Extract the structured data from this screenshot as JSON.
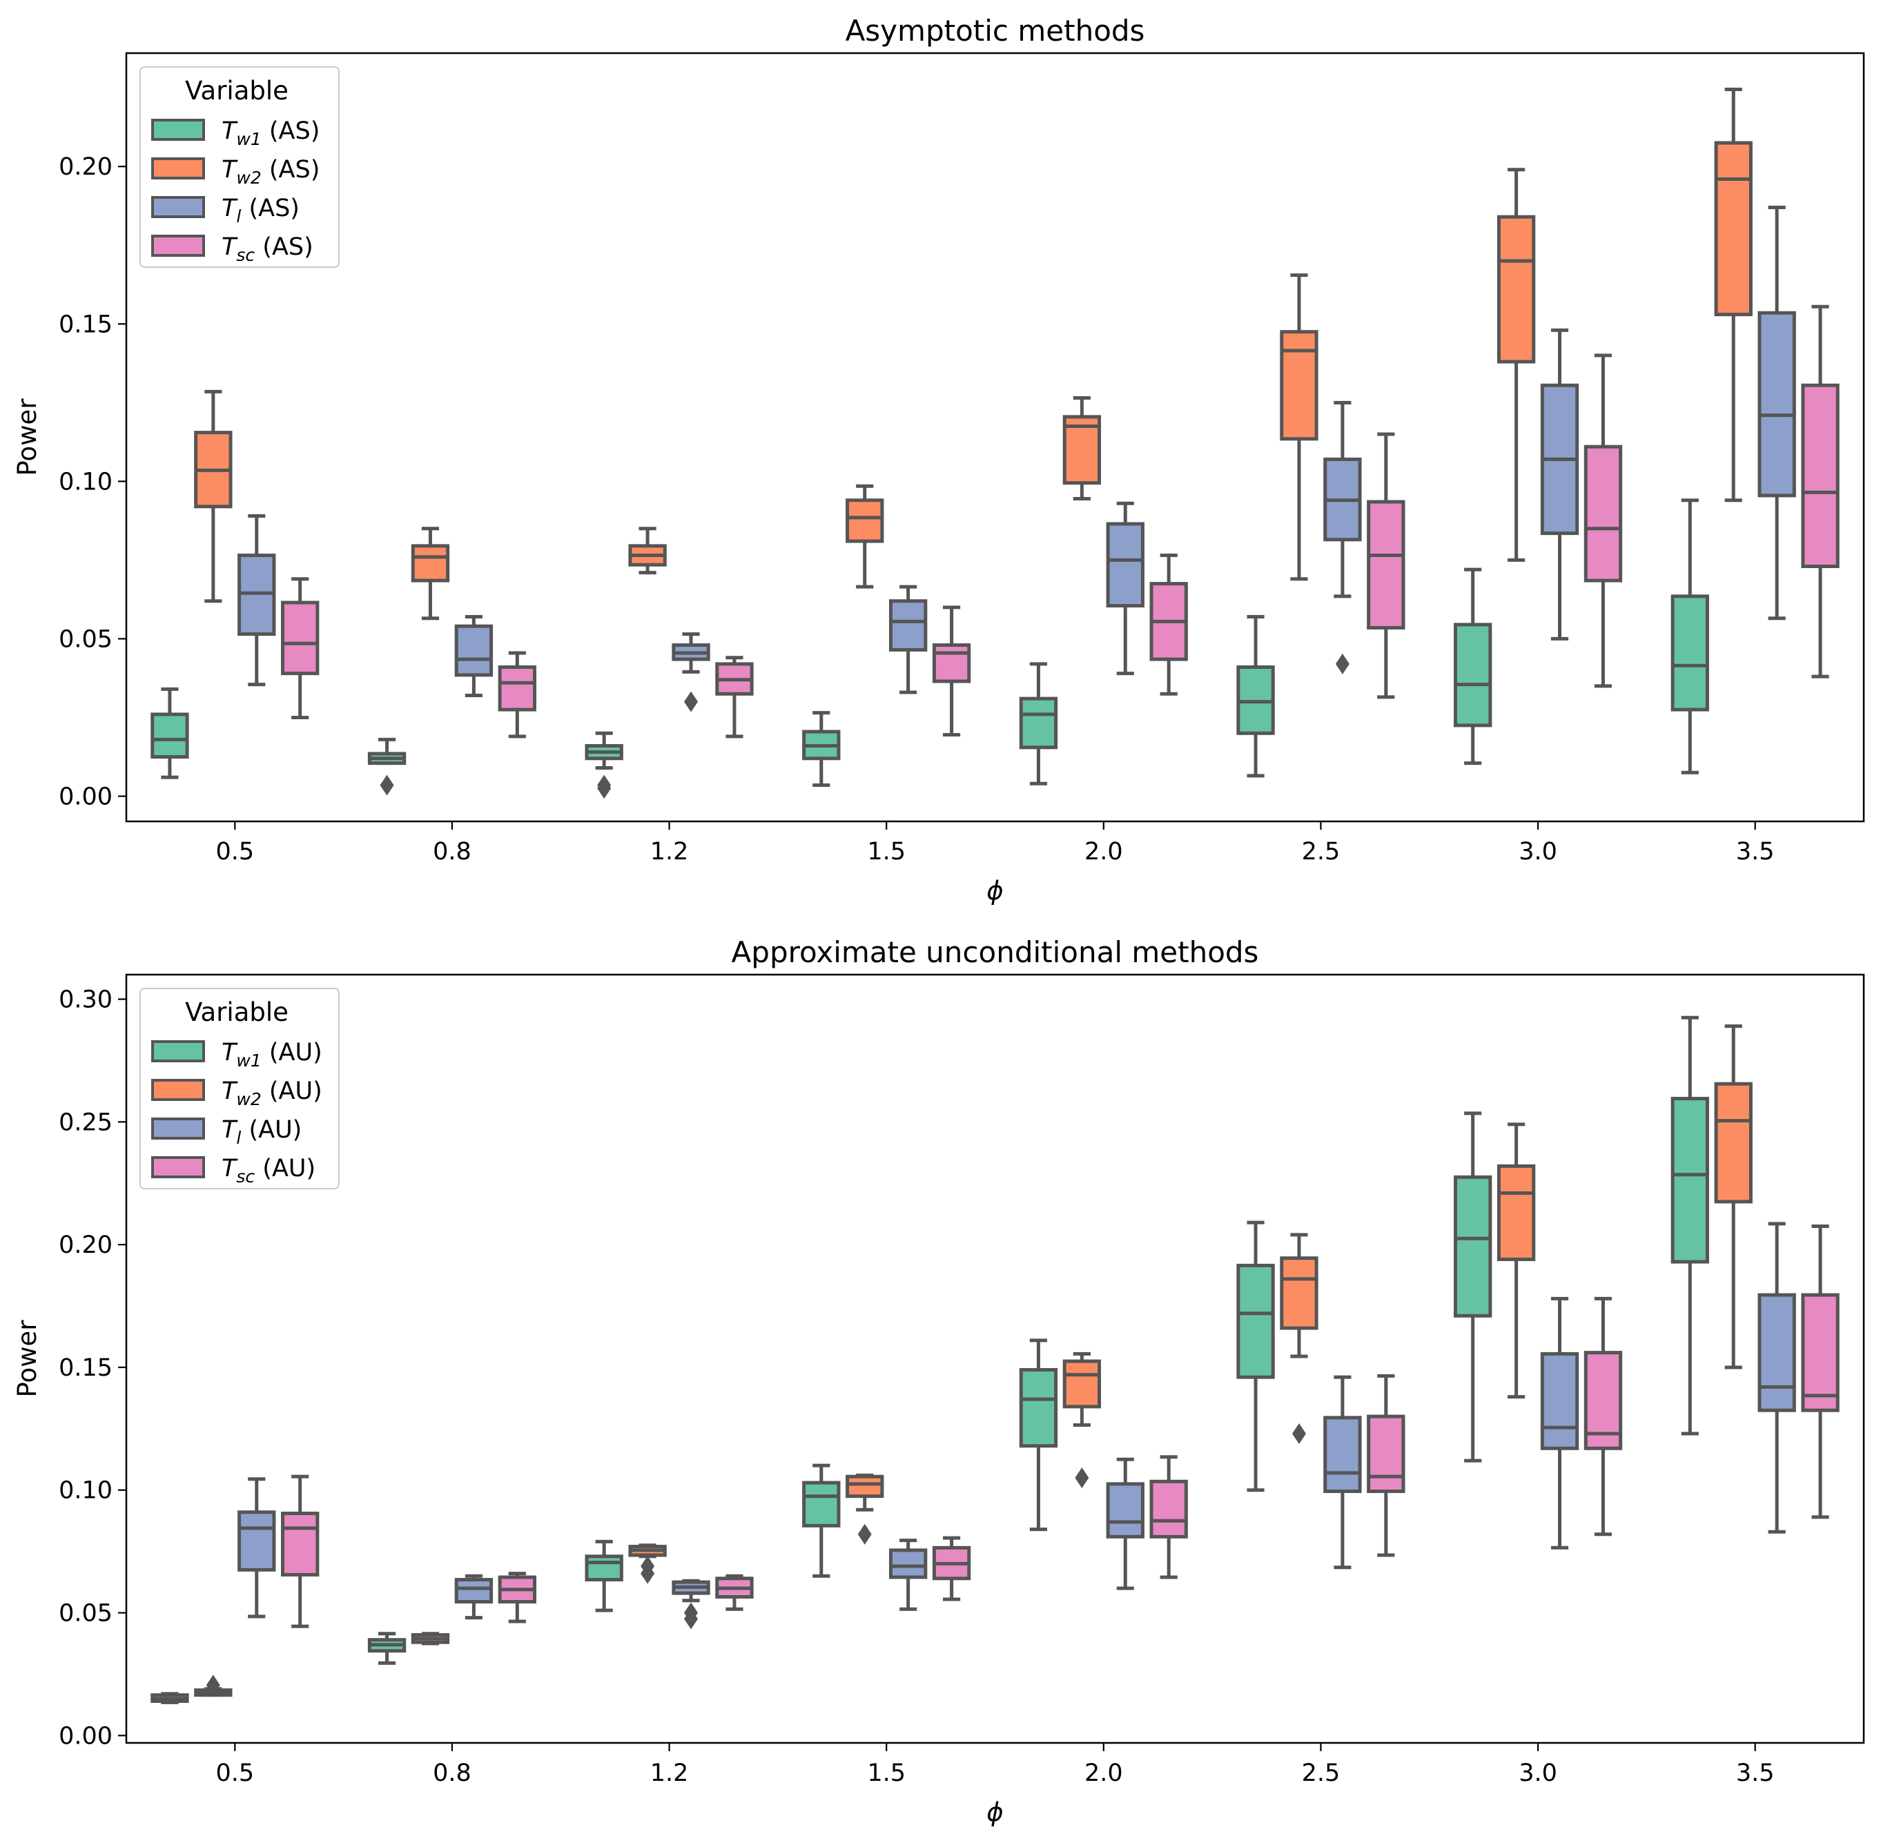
{
  "chart_data": [
    {
      "type": "box",
      "title": "Asymptotic methods",
      "xlabel": "ϕ",
      "ylabel": "Power",
      "ylim": [
        -0.008,
        0.236
      ],
      "yticks": [
        0.0,
        0.05,
        0.1,
        0.15,
        0.2
      ],
      "ytick_labels": [
        "0.00",
        "0.05",
        "0.10",
        "0.15",
        "0.20"
      ],
      "categories": [
        "0.5",
        "0.8",
        "1.2",
        "1.5",
        "2.0",
        "2.5",
        "3.0",
        "3.5"
      ],
      "legend": {
        "title": "Variable",
        "position": "top-left",
        "entries": [
          {
            "base": "T",
            "sub": "w1",
            "suffix": " (AS)"
          },
          {
            "base": "T",
            "sub": "w2",
            "suffix": " (AS)"
          },
          {
            "base": "T",
            "sub": "l",
            "suffix": " (AS)"
          },
          {
            "base": "T",
            "sub": "sc",
            "suffix": " (AS)"
          }
        ]
      },
      "series": [
        {
          "name": "Tw1 (AS)",
          "color": "#66c2a5",
          "boxes": [
            {
              "whislo": 0.006,
              "q1": 0.0125,
              "med": 0.018,
              "q3": 0.026,
              "whishi": 0.034,
              "fliers": []
            },
            {
              "whislo": 0.0105,
              "q1": 0.0105,
              "med": 0.012,
              "q3": 0.0135,
              "whishi": 0.018,
              "fliers": [
                0.0035
              ]
            },
            {
              "whislo": 0.009,
              "q1": 0.012,
              "med": 0.014,
              "q3": 0.016,
              "whishi": 0.02,
              "fliers": [
                0.0035,
                0.0025
              ]
            },
            {
              "whislo": 0.0035,
              "q1": 0.012,
              "med": 0.016,
              "q3": 0.0205,
              "whishi": 0.0265,
              "fliers": []
            },
            {
              "whislo": 0.004,
              "q1": 0.0155,
              "med": 0.026,
              "q3": 0.031,
              "whishi": 0.042,
              "fliers": []
            },
            {
              "whislo": 0.0065,
              "q1": 0.02,
              "med": 0.03,
              "q3": 0.041,
              "whishi": 0.057,
              "fliers": []
            },
            {
              "whislo": 0.0105,
              "q1": 0.0225,
              "med": 0.0355,
              "q3": 0.0545,
              "whishi": 0.072,
              "fliers": []
            },
            {
              "whislo": 0.0075,
              "q1": 0.0275,
              "med": 0.0415,
              "q3": 0.0635,
              "whishi": 0.094,
              "fliers": []
            }
          ]
        },
        {
          "name": "Tw2 (AS)",
          "color": "#fc8d62",
          "boxes": [
            {
              "whislo": 0.062,
              "q1": 0.092,
              "med": 0.1035,
              "q3": 0.1155,
              "whishi": 0.1285,
              "fliers": []
            },
            {
              "whislo": 0.0565,
              "q1": 0.0685,
              "med": 0.076,
              "q3": 0.0795,
              "whishi": 0.085,
              "fliers": []
            },
            {
              "whislo": 0.071,
              "q1": 0.0735,
              "med": 0.0765,
              "q3": 0.0795,
              "whishi": 0.085,
              "fliers": []
            },
            {
              "whislo": 0.0665,
              "q1": 0.081,
              "med": 0.0885,
              "q3": 0.094,
              "whishi": 0.0985,
              "fliers": []
            },
            {
              "whislo": 0.0945,
              "q1": 0.0995,
              "med": 0.1175,
              "q3": 0.1205,
              "whishi": 0.1265,
              "fliers": []
            },
            {
              "whislo": 0.069,
              "q1": 0.1135,
              "med": 0.1415,
              "q3": 0.1475,
              "whishi": 0.1655,
              "fliers": []
            },
            {
              "whislo": 0.075,
              "q1": 0.138,
              "med": 0.17,
              "q3": 0.184,
              "whishi": 0.199,
              "fliers": []
            },
            {
              "whislo": 0.094,
              "q1": 0.153,
              "med": 0.196,
              "q3": 0.2075,
              "whishi": 0.2245,
              "fliers": []
            }
          ]
        },
        {
          "name": "Tl (AS)",
          "color": "#8da0cb",
          "boxes": [
            {
              "whislo": 0.0355,
              "q1": 0.0515,
              "med": 0.0645,
              "q3": 0.0765,
              "whishi": 0.089,
              "fliers": []
            },
            {
              "whislo": 0.032,
              "q1": 0.0385,
              "med": 0.0435,
              "q3": 0.054,
              "whishi": 0.057,
              "fliers": []
            },
            {
              "whislo": 0.0395,
              "q1": 0.0435,
              "med": 0.0455,
              "q3": 0.048,
              "whishi": 0.0515,
              "fliers": [
                0.03
              ]
            },
            {
              "whislo": 0.033,
              "q1": 0.0465,
              "med": 0.0555,
              "q3": 0.062,
              "whishi": 0.0665,
              "fliers": []
            },
            {
              "whislo": 0.039,
              "q1": 0.0605,
              "med": 0.075,
              "q3": 0.0865,
              "whishi": 0.093,
              "fliers": []
            },
            {
              "whislo": 0.0635,
              "q1": 0.0815,
              "med": 0.094,
              "q3": 0.107,
              "whishi": 0.125,
              "fliers": [
                0.042
              ]
            },
            {
              "whislo": 0.05,
              "q1": 0.0835,
              "med": 0.107,
              "q3": 0.1305,
              "whishi": 0.148,
              "fliers": []
            },
            {
              "whislo": 0.0565,
              "q1": 0.0955,
              "med": 0.121,
              "q3": 0.1535,
              "whishi": 0.187,
              "fliers": []
            }
          ]
        },
        {
          "name": "Tsc (AS)",
          "color": "#e78ac3",
          "boxes": [
            {
              "whislo": 0.025,
              "q1": 0.039,
              "med": 0.0485,
              "q3": 0.0615,
              "whishi": 0.069,
              "fliers": []
            },
            {
              "whislo": 0.019,
              "q1": 0.0275,
              "med": 0.036,
              "q3": 0.041,
              "whishi": 0.0455,
              "fliers": []
            },
            {
              "whislo": 0.019,
              "q1": 0.0325,
              "med": 0.037,
              "q3": 0.042,
              "whishi": 0.044,
              "fliers": []
            },
            {
              "whislo": 0.0195,
              "q1": 0.0365,
              "med": 0.0455,
              "q3": 0.048,
              "whishi": 0.06,
              "fliers": []
            },
            {
              "whislo": 0.0325,
              "q1": 0.0435,
              "med": 0.0555,
              "q3": 0.0675,
              "whishi": 0.0765,
              "fliers": []
            },
            {
              "whislo": 0.0315,
              "q1": 0.0535,
              "med": 0.0765,
              "q3": 0.0935,
              "whishi": 0.115,
              "fliers": []
            },
            {
              "whislo": 0.035,
              "q1": 0.0685,
              "med": 0.085,
              "q3": 0.111,
              "whishi": 0.14,
              "fliers": []
            },
            {
              "whislo": 0.038,
              "q1": 0.073,
              "med": 0.0965,
              "q3": 0.1305,
              "whishi": 0.1555,
              "fliers": []
            }
          ]
        }
      ]
    },
    {
      "type": "box",
      "title": "Approximate unconditional methods",
      "xlabel": "ϕ",
      "ylabel": "Power",
      "ylim": [
        -0.003,
        0.31
      ],
      "yticks": [
        0.0,
        0.05,
        0.1,
        0.15,
        0.2,
        0.25,
        0.3
      ],
      "ytick_labels": [
        "0.00",
        "0.05",
        "0.10",
        "0.15",
        "0.20",
        "0.25",
        "0.30"
      ],
      "categories": [
        "0.5",
        "0.8",
        "1.2",
        "1.5",
        "2.0",
        "2.5",
        "3.0",
        "3.5"
      ],
      "legend": {
        "title": "Variable",
        "position": "top-left",
        "entries": [
          {
            "base": "T",
            "sub": "w1",
            "suffix": " (AU)"
          },
          {
            "base": "T",
            "sub": "w2",
            "suffix": " (AU)"
          },
          {
            "base": "T",
            "sub": "l",
            "suffix": " (AU)"
          },
          {
            "base": "T",
            "sub": "sc",
            "suffix": " (AU)"
          }
        ]
      },
      "series": [
        {
          "name": "Tw1 (AU)",
          "color": "#66c2a5",
          "boxes": [
            {
              "whislo": 0.0135,
              "q1": 0.014,
              "med": 0.015,
              "q3": 0.0165,
              "whishi": 0.017,
              "fliers": []
            },
            {
              "whislo": 0.0295,
              "q1": 0.0345,
              "med": 0.037,
              "q3": 0.039,
              "whishi": 0.0415,
              "fliers": []
            },
            {
              "whislo": 0.051,
              "q1": 0.0635,
              "med": 0.0705,
              "q3": 0.073,
              "whishi": 0.079,
              "fliers": []
            },
            {
              "whislo": 0.065,
              "q1": 0.0855,
              "med": 0.0975,
              "q3": 0.103,
              "whishi": 0.11,
              "fliers": []
            },
            {
              "whislo": 0.084,
              "q1": 0.118,
              "med": 0.137,
              "q3": 0.149,
              "whishi": 0.161,
              "fliers": []
            },
            {
              "whislo": 0.1,
              "q1": 0.146,
              "med": 0.172,
              "q3": 0.1915,
              "whishi": 0.209,
              "fliers": []
            },
            {
              "whislo": 0.112,
              "q1": 0.171,
              "med": 0.2025,
              "q3": 0.2275,
              "whishi": 0.2535,
              "fliers": []
            },
            {
              "whislo": 0.123,
              "q1": 0.193,
              "med": 0.2285,
              "q3": 0.2595,
              "whishi": 0.2925,
              "fliers": []
            }
          ]
        },
        {
          "name": "Tw2 (AU)",
          "color": "#fc8d62",
          "boxes": [
            {
              "whislo": 0.0165,
              "q1": 0.0165,
              "med": 0.0175,
              "q3": 0.0185,
              "whishi": 0.019,
              "fliers": [
                0.0205
              ]
            },
            {
              "whislo": 0.0375,
              "q1": 0.038,
              "med": 0.0395,
              "q3": 0.041,
              "whishi": 0.0415,
              "fliers": []
            },
            {
              "whislo": 0.073,
              "q1": 0.0735,
              "med": 0.0755,
              "q3": 0.077,
              "whishi": 0.0775,
              "fliers": [
                0.069,
                0.066
              ]
            },
            {
              "whislo": 0.092,
              "q1": 0.0975,
              "med": 0.1025,
              "q3": 0.1055,
              "whishi": 0.106,
              "fliers": [
                0.082
              ]
            },
            {
              "whislo": 0.1265,
              "q1": 0.134,
              "med": 0.147,
              "q3": 0.1525,
              "whishi": 0.1555,
              "fliers": [
                0.105
              ]
            },
            {
              "whislo": 0.1545,
              "q1": 0.166,
              "med": 0.186,
              "q3": 0.1945,
              "whishi": 0.204,
              "fliers": [
                0.123
              ]
            },
            {
              "whislo": 0.138,
              "q1": 0.194,
              "med": 0.221,
              "q3": 0.232,
              "whishi": 0.249,
              "fliers": []
            },
            {
              "whislo": 0.15,
              "q1": 0.2175,
              "med": 0.2505,
              "q3": 0.2655,
              "whishi": 0.289,
              "fliers": []
            }
          ]
        },
        {
          "name": "Tl (AU)",
          "color": "#8da0cb",
          "boxes": [
            {
              "whislo": 0.0485,
              "q1": 0.0675,
              "med": 0.0845,
              "q3": 0.091,
              "whishi": 0.1045,
              "fliers": []
            },
            {
              "whislo": 0.048,
              "q1": 0.0545,
              "med": 0.06,
              "q3": 0.0635,
              "whishi": 0.065,
              "fliers": []
            },
            {
              "whislo": 0.055,
              "q1": 0.058,
              "med": 0.0605,
              "q3": 0.0625,
              "whishi": 0.063,
              "fliers": [
                0.05,
                0.0475
              ]
            },
            {
              "whislo": 0.0515,
              "q1": 0.0645,
              "med": 0.069,
              "q3": 0.0755,
              "whishi": 0.0795,
              "fliers": []
            },
            {
              "whislo": 0.06,
              "q1": 0.081,
              "med": 0.087,
              "q3": 0.1025,
              "whishi": 0.1125,
              "fliers": []
            },
            {
              "whislo": 0.0685,
              "q1": 0.0995,
              "med": 0.107,
              "q3": 0.1295,
              "whishi": 0.146,
              "fliers": []
            },
            {
              "whislo": 0.0765,
              "q1": 0.117,
              "med": 0.1255,
              "q3": 0.1555,
              "whishi": 0.178,
              "fliers": []
            },
            {
              "whislo": 0.083,
              "q1": 0.1325,
              "med": 0.142,
              "q3": 0.1795,
              "whishi": 0.2085,
              "fliers": []
            }
          ]
        },
        {
          "name": "Tsc (AU)",
          "color": "#e78ac3",
          "boxes": [
            {
              "whislo": 0.0445,
              "q1": 0.0655,
              "med": 0.0845,
              "q3": 0.0905,
              "whishi": 0.1055,
              "fliers": []
            },
            {
              "whislo": 0.0465,
              "q1": 0.0545,
              "med": 0.0595,
              "q3": 0.0645,
              "whishi": 0.066,
              "fliers": []
            },
            {
              "whislo": 0.0515,
              "q1": 0.0565,
              "med": 0.06,
              "q3": 0.064,
              "whishi": 0.065,
              "fliers": []
            },
            {
              "whislo": 0.0555,
              "q1": 0.064,
              "med": 0.07,
              "q3": 0.0765,
              "whishi": 0.0805,
              "fliers": []
            },
            {
              "whislo": 0.0645,
              "q1": 0.081,
              "med": 0.0875,
              "q3": 0.1035,
              "whishi": 0.1135,
              "fliers": []
            },
            {
              "whislo": 0.0735,
              "q1": 0.0995,
              "med": 0.1055,
              "q3": 0.13,
              "whishi": 0.1465,
              "fliers": []
            },
            {
              "whislo": 0.082,
              "q1": 0.117,
              "med": 0.123,
              "q3": 0.156,
              "whishi": 0.178,
              "fliers": []
            },
            {
              "whislo": 0.089,
              "q1": 0.1325,
              "med": 0.1385,
              "q3": 0.1795,
              "whishi": 0.2075,
              "fliers": []
            }
          ]
        }
      ]
    }
  ]
}
